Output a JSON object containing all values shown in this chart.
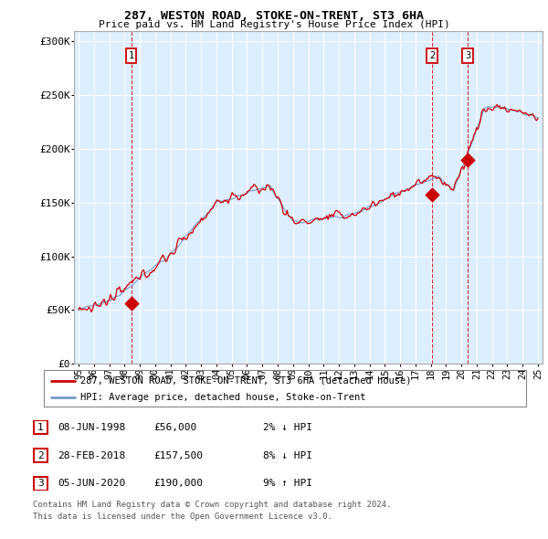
{
  "title": "287, WESTON ROAD, STOKE-ON-TRENT, ST3 6HA",
  "subtitle": "Price paid vs. HM Land Registry's House Price Index (HPI)",
  "legend_red": "287, WESTON ROAD, STOKE-ON-TRENT, ST3 6HA (detached house)",
  "legend_blue": "HPI: Average price, detached house, Stoke-on-Trent",
  "table_rows": [
    [
      "1",
      "08-JUN-1998",
      "£56,000",
      "2% ↓ HPI"
    ],
    [
      "2",
      "28-FEB-2018",
      "£157,500",
      "8% ↓ HPI"
    ],
    [
      "3",
      "05-JUN-2020",
      "£190,000",
      "9% ↑ HPI"
    ]
  ],
  "footnote1": "Contains HM Land Registry data © Crown copyright and database right 2024.",
  "footnote2": "This data is licensed under the Open Government Licence v3.0.",
  "red_color": "#cc0000",
  "blue_color": "#7799cc",
  "bg_color": "#ffffff",
  "plot_bg_color": "#ddeeff",
  "grid_color": "#ffffff",
  "ylim": [
    0,
    310000
  ],
  "yticks": [
    0,
    50000,
    100000,
    150000,
    200000,
    250000,
    300000
  ],
  "ytick_labels": [
    "£0",
    "£50K",
    "£100K",
    "£150K",
    "£200K",
    "£250K",
    "£300K"
  ],
  "sale_t": [
    1998.44,
    2018.08,
    2020.42
  ],
  "sale_prices": [
    56000,
    157500,
    190000
  ],
  "sale_labels": [
    "1",
    "2",
    "3"
  ],
  "xstart_year": 1995,
  "xend_year": 2025
}
